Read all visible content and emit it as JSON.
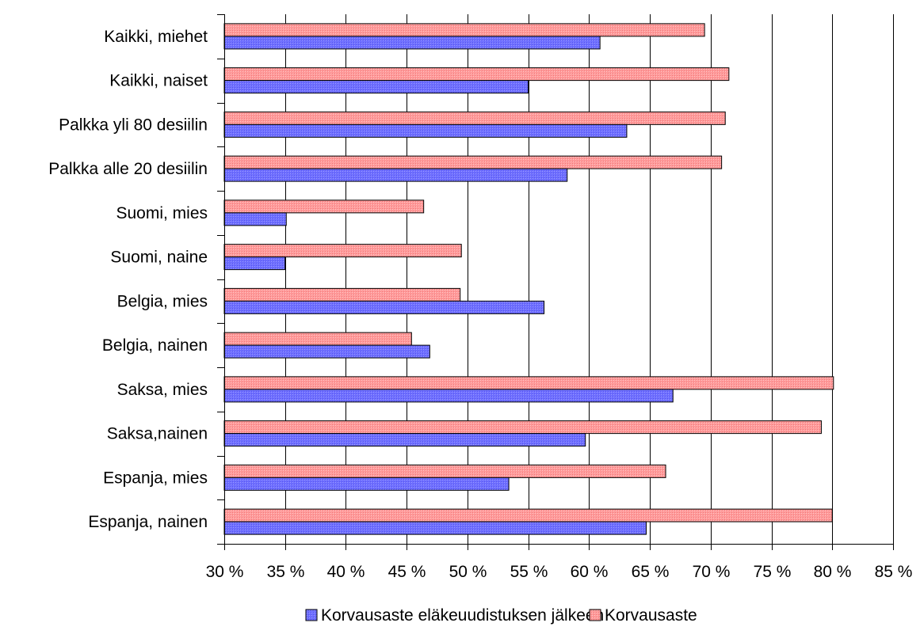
{
  "chart_data": {
    "type": "bar",
    "orientation": "horizontal",
    "categories": [
      "Kaikki, miehet",
      "Kaikki, naiset",
      "Palkka yli 80 desiilin",
      "Palkka alle 20 desiilin",
      "Suomi, mies",
      "Suomi, naine",
      "Belgia, mies",
      "Belgia, nainen",
      "Saksa, mies",
      "Saksa,nainen",
      "Espanja, mies",
      "Espanja, nainen"
    ],
    "series": [
      {
        "name": "Korvausaste eläkeuudistuksen jälkeen",
        "color": "#6666ff",
        "values": [
          60.9,
          55.0,
          63.1,
          58.2,
          35.1,
          35.0,
          56.3,
          46.9,
          66.9,
          59.7,
          53.4,
          64.7
        ]
      },
      {
        "name": "Korvausaste",
        "color": "#ff9999",
        "values": [
          69.5,
          71.5,
          71.2,
          70.9,
          46.4,
          49.5,
          49.4,
          45.4,
          80.1,
          79.1,
          66.3,
          80.0
        ]
      }
    ],
    "xaxis": {
      "min": 30,
      "max": 85,
      "step": 5,
      "tick_labels": [
        "30 %",
        "35 %",
        "40 %",
        "45 %",
        "50 %",
        "55 %",
        "60 %",
        "65 %",
        "70 %",
        "75 %",
        "80 %",
        "85 %"
      ]
    },
    "grid": "vertical",
    "legend_position": "bottom"
  }
}
